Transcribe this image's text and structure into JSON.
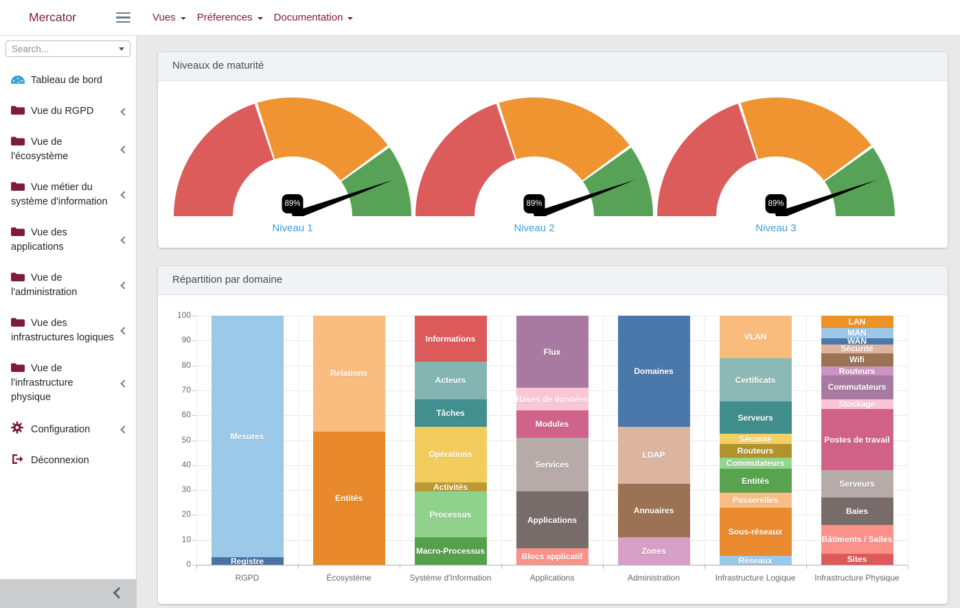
{
  "navbar": {
    "brand": "Mercator",
    "menus": [
      {
        "label": "Vues"
      },
      {
        "label": "Préferences"
      },
      {
        "label": "Documentation"
      }
    ]
  },
  "sidebar": {
    "search_placeholder": "Search...",
    "items": [
      {
        "label": "Tableau de bord",
        "icon": "tachometer-icon",
        "has_children": false
      },
      {
        "label": "Vue du RGPD",
        "icon": "folder-icon",
        "has_children": true
      },
      {
        "label": "Vue de l'écosystème",
        "icon": "folder-icon",
        "has_children": true
      },
      {
        "label": "Vue métier du\nsystème d'information",
        "icon": "folder-icon",
        "has_children": true
      },
      {
        "label": "Vue des applications",
        "icon": "folder-icon",
        "has_children": true
      },
      {
        "label": "Vue de\nl'administration",
        "icon": "folder-icon",
        "has_children": true
      },
      {
        "label": "Vue des\ninfrastructures logiques",
        "icon": "folder-icon",
        "has_children": true
      },
      {
        "label": "Vue de l'infrastructure\nphysique",
        "icon": "folder-icon",
        "has_children": true
      },
      {
        "label": "Configuration",
        "icon": "gear-icon",
        "has_children": true
      },
      {
        "label": "Déconnexion",
        "icon": "signout-icon",
        "has_children": false
      }
    ]
  },
  "cards": [
    {
      "title": "Niveaux de maturité"
    },
    {
      "title": "Répartition par domaine"
    }
  ],
  "chart_data": [
    {
      "type": "gauge",
      "title": "Niveaux de maturité",
      "gauges": [
        {
          "label": "Niveau 1",
          "value_pct": 89
        },
        {
          "label": "Niveau 2",
          "value_pct": 89
        },
        {
          "label": "Niveau 3",
          "value_pct": 89
        }
      ],
      "scale_segments": [
        {
          "color": "#dc5c5c",
          "span_pct": 40
        },
        {
          "color": "#ef9430",
          "span_pct": 40
        },
        {
          "color": "#57a257",
          "span_pct": 20
        }
      ],
      "needle_color": "#000000",
      "value_badge_bg": "#000000",
      "label_color": "#3c9fd9"
    },
    {
      "type": "bar",
      "stacked": true,
      "title": "Répartition par domaine",
      "ylim": [
        0,
        100
      ],
      "yticks": [
        0,
        10,
        20,
        30,
        40,
        50,
        60,
        70,
        80,
        90,
        100
      ],
      "grid": true,
      "legend_position": "none",
      "categories": [
        "RGPD",
        "Écosystème",
        "Système d'Information",
        "Applications",
        "Administration",
        "Infrastructure Logique",
        "Infrastructure Physique"
      ],
      "stacks_bottom_to_top": [
        [
          {
            "label": "Registre",
            "value": 3,
            "color": "#4a72a5"
          },
          {
            "label": "Mesures",
            "value": 97,
            "color": "#9dc9e8"
          }
        ],
        [
          {
            "label": "Entités",
            "value": 53.5,
            "color": "#e8892b"
          },
          {
            "label": "Relations",
            "value": 46.5,
            "color": "#f9bd80"
          }
        ],
        [
          {
            "label": "Macro-Processus",
            "value": 11,
            "color": "#55a14b"
          },
          {
            "label": "Processus",
            "value": 18.5,
            "color": "#90d28c"
          },
          {
            "label": "Activités",
            "value": 3.5,
            "color": "#ba9a31"
          },
          {
            "label": "Opérations",
            "value": 22.5,
            "color": "#f2cd5e"
          },
          {
            "label": "Tâches",
            "value": 11,
            "color": "#41908f"
          },
          {
            "label": "Acteurs",
            "value": 15,
            "color": "#84b5b3"
          },
          {
            "label": "Informations",
            "value": 18.5,
            "color": "#dc5a5a"
          }
        ],
        [
          {
            "label": "Blocs applicatif",
            "value": 6.5,
            "color": "#fb9189"
          },
          {
            "label": "Applications",
            "value": 23,
            "color": "#776c69"
          },
          {
            "label": "Services",
            "value": 21.5,
            "color": "#b6aba8"
          },
          {
            "label": "Modules",
            "value": 11,
            "color": "#d06389"
          },
          {
            "label": "Bases de données",
            "value": 9,
            "color": "#fbc6d4"
          },
          {
            "label": "Flux",
            "value": 29,
            "color": "#a97aa1"
          }
        ],
        [
          {
            "label": "Zones",
            "value": 11,
            "color": "#d6a0c6"
          },
          {
            "label": "Annuaires",
            "value": 21.5,
            "color": "#9b7253"
          },
          {
            "label": "LDAP",
            "value": 23,
            "color": "#dcb5a0"
          },
          {
            "label": "Domaines",
            "value": 44.5,
            "color": "#4b78ab"
          }
        ],
        [
          {
            "label": "Réseaux",
            "value": 3.5,
            "color": "#9bc9e9"
          },
          {
            "label": "Sous-réseaux",
            "value": 19.5,
            "color": "#e98b2e"
          },
          {
            "label": "Passerelles",
            "value": 6,
            "color": "#fabd85"
          },
          {
            "label": "Entités",
            "value": 9.5,
            "color": "#58a44e"
          },
          {
            "label": "Commutateurs",
            "value": 4.5,
            "color": "#92d68f"
          },
          {
            "label": "Routeurs",
            "value": 5.5,
            "color": "#b2922c"
          },
          {
            "label": "Sécurité",
            "value": 4,
            "color": "#f4d063"
          },
          {
            "label": "Serveurs",
            "value": 13,
            "color": "#3f8e8c"
          },
          {
            "label": "Certificats",
            "value": 17.5,
            "color": "#8cb8b5"
          },
          {
            "label": "VLAN",
            "value": 17,
            "color": "#fabc7d"
          }
        ],
        [
          {
            "label": "Sites",
            "value": 4.5,
            "color": "#dc5a58"
          },
          {
            "label": "Bâtiments / Salles",
            "value": 11.5,
            "color": "#fb9189"
          },
          {
            "label": "Baies",
            "value": 11,
            "color": "#776c69"
          },
          {
            "label": "Serveurs",
            "value": 11,
            "color": "#b6aba8"
          },
          {
            "label": "Postes de travail",
            "value": 24.5,
            "color": "#d06287"
          },
          {
            "label": "Stockage",
            "value": 4,
            "color": "#fbc6d4"
          },
          {
            "label": "Commutateurs",
            "value": 9.5,
            "color": "#a97aa1"
          },
          {
            "label": "Routeurs",
            "value": 3.5,
            "color": "#cb93c0"
          },
          {
            "label": "Wifi",
            "value": 5.5,
            "color": "#9b7253"
          },
          {
            "label": "Sécurité",
            "value": 3.5,
            "color": "#dcb5a0"
          },
          {
            "label": "WAN",
            "value": 2.5,
            "color": "#4b78ab"
          },
          {
            "label": "MAN",
            "value": 4,
            "color": "#9cc8e7"
          },
          {
            "label": "LAN",
            "value": 5,
            "color": "#ef9226"
          }
        ]
      ],
      "axis_color": "#a8adb3",
      "grid_color": "#e9e9e9",
      "tick_color": "#666666"
    }
  ]
}
